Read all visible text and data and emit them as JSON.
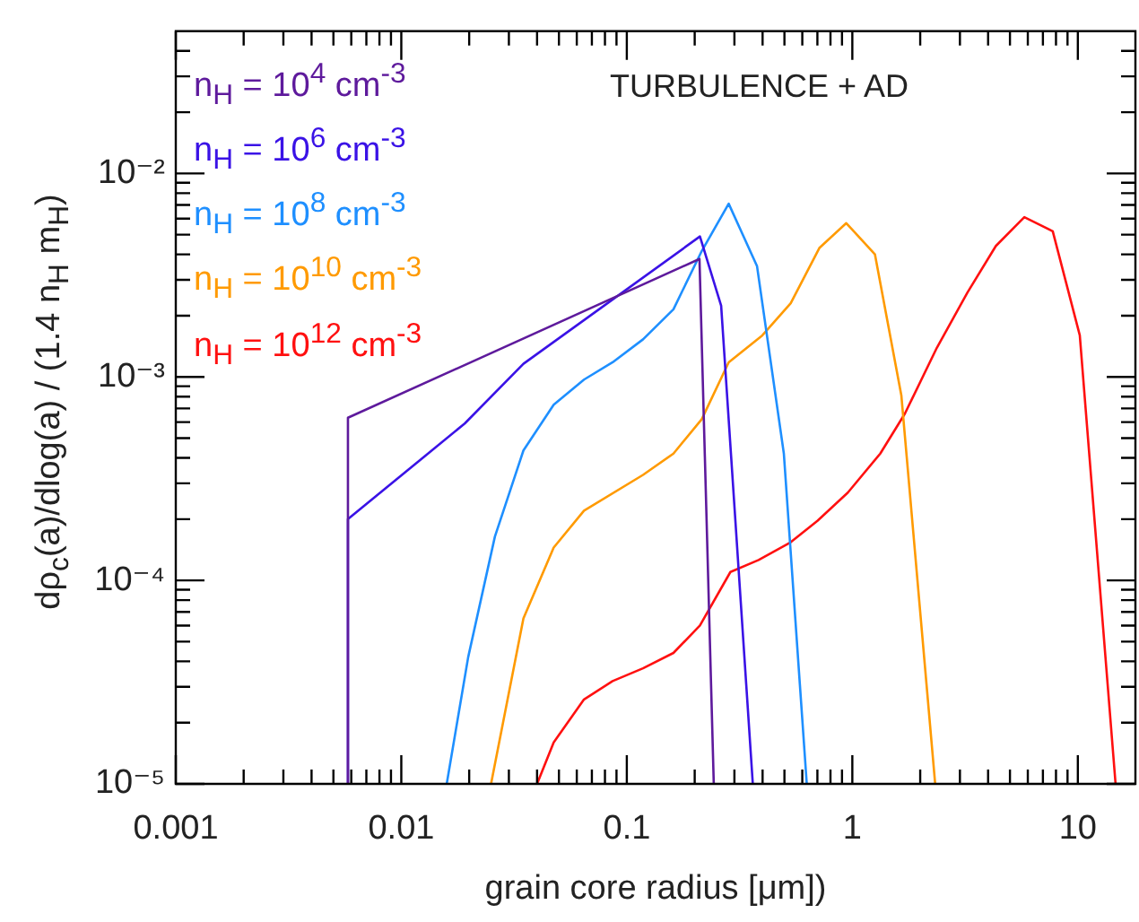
{
  "chart_data": {
    "type": "line",
    "xlabel": "grain core radius [μm])",
    "ylabel": "dρ$_{c}$(a)/dlog(a) / (1.4 n$_{H}$ m$_{H}$)",
    "annotations": [
      "TURBULENCE + AD"
    ],
    "log": "xy",
    "legend": "top left",
    "grid": false,
    "marker": "none",
    "line_style": "solid",
    "xlim": [
      0.001,
      18
    ],
    "ylim": [
      1e-05,
      0.05
    ],
    "xticks": [
      {
        "value": 0.001,
        "label": "0.001"
      },
      {
        "value": 0.002,
        "label": null
      },
      {
        "value": 0.003,
        "label": null
      },
      {
        "value": 0.004,
        "label": null
      },
      {
        "value": 0.005,
        "label": null
      },
      {
        "value": 0.006,
        "label": null
      },
      {
        "value": 0.007,
        "label": null
      },
      {
        "value": 0.008,
        "label": null
      },
      {
        "value": 0.009,
        "label": null
      },
      {
        "value": 0.01,
        "label": "0.01"
      },
      {
        "value": 0.02,
        "label": null
      },
      {
        "value": 0.03,
        "label": null
      },
      {
        "value": 0.04,
        "label": null
      },
      {
        "value": 0.05,
        "label": null
      },
      {
        "value": 0.06,
        "label": null
      },
      {
        "value": 0.07,
        "label": null
      },
      {
        "value": 0.08,
        "label": null
      },
      {
        "value": 0.09,
        "label": null
      },
      {
        "value": 0.1,
        "label": "0.1"
      },
      {
        "value": 0.2,
        "label": null
      },
      {
        "value": 0.3,
        "label": null
      },
      {
        "value": 0.4,
        "label": null
      },
      {
        "value": 0.5,
        "label": null
      },
      {
        "value": 0.6,
        "label": null
      },
      {
        "value": 0.7,
        "label": null
      },
      {
        "value": 0.8,
        "label": null
      },
      {
        "value": 0.9,
        "label": null
      },
      {
        "value": 1,
        "label": "1"
      },
      {
        "value": 2,
        "label": null
      },
      {
        "value": 3,
        "label": null
      },
      {
        "value": 4,
        "label": null
      },
      {
        "value": 5,
        "label": null
      },
      {
        "value": 6,
        "label": null
      },
      {
        "value": 7,
        "label": null
      },
      {
        "value": 8,
        "label": null
      },
      {
        "value": 9,
        "label": null
      },
      {
        "value": 10,
        "label": "10"
      }
    ],
    "yticks": [
      {
        "value": 1e-05,
        "label": "10⁻⁵"
      },
      {
        "value": 2e-05,
        "label": null
      },
      {
        "value": 3e-05,
        "label": null
      },
      {
        "value": 4e-05,
        "label": null
      },
      {
        "value": 5e-05,
        "label": null
      },
      {
        "value": 6e-05,
        "label": null
      },
      {
        "value": 7e-05,
        "label": null
      },
      {
        "value": 8e-05,
        "label": null
      },
      {
        "value": 9e-05,
        "label": null
      },
      {
        "value": 0.0001,
        "label": "10⁻⁴"
      },
      {
        "value": 0.0002,
        "label": null
      },
      {
        "value": 0.0003,
        "label": null
      },
      {
        "value": 0.0004,
        "label": null
      },
      {
        "value": 0.0005,
        "label": null
      },
      {
        "value": 0.0006,
        "label": null
      },
      {
        "value": 0.0007,
        "label": null
      },
      {
        "value": 0.0008,
        "label": null
      },
      {
        "value": 0.0009,
        "label": null
      },
      {
        "value": 0.001,
        "label": "10⁻³"
      },
      {
        "value": 0.002,
        "label": null
      },
      {
        "value": 0.003,
        "label": null
      },
      {
        "value": 0.004,
        "label": null
      },
      {
        "value": 0.005,
        "label": null
      },
      {
        "value": 0.006,
        "label": null
      },
      {
        "value": 0.007,
        "label": null
      },
      {
        "value": 0.008,
        "label": null
      },
      {
        "value": 0.009,
        "label": null
      },
      {
        "value": 0.01,
        "label": "10⁻²"
      },
      {
        "value": 0.02,
        "label": null
      },
      {
        "value": 0.03,
        "label": null
      },
      {
        "value": 0.04,
        "label": null
      }
    ],
    "series": [
      {
        "name": "n$_{H}$ = 10$^{4}$ cm$^{-3}$",
        "color": "#5e1a9c",
        "x": [
          0.0058,
          0.0058,
          0.21,
          0.243
        ],
        "values": [
          1e-05,
          0.00063,
          0.0038,
          1e-05
        ]
      },
      {
        "name": "n$_{H}$ = 10$^{6}$ cm$^{-3}$",
        "color": "#3a12e6",
        "x": [
          0.0058,
          0.0058,
          0.0191,
          0.0348,
          0.211,
          0.262,
          0.362
        ],
        "values": [
          1e-05,
          0.0002,
          0.00059,
          0.00116,
          0.0049,
          0.00224,
          1e-05
        ]
      },
      {
        "name": "n$_{H}$ = 10$^{8}$ cm$^{-3}$",
        "color": "#1e8fff",
        "x": [
          0.0159,
          0.0198,
          0.026,
          0.0348,
          0.0474,
          0.0646,
          0.0865,
          0.118,
          0.161,
          0.215,
          0.283,
          0.378,
          0.497,
          0.628
        ],
        "values": [
          1e-05,
          4.2e-05,
          0.000164,
          0.000435,
          0.00073,
          0.00097,
          0.00118,
          0.00153,
          0.00215,
          0.00416,
          0.0071,
          0.0035,
          0.00042,
          1e-05
        ]
      },
      {
        "name": "n$_{H}$ = 10$^{10}$ cm$^{-3}$",
        "color": "#ff9a00",
        "x": [
          0.025,
          0.0348,
          0.0474,
          0.0646,
          0.118,
          0.161,
          0.215,
          0.283,
          0.399,
          0.533,
          0.714,
          0.94,
          1.26,
          1.65,
          2.33
        ],
        "values": [
          1e-05,
          6.5e-05,
          0.000145,
          0.00022,
          0.00033,
          0.00042,
          0.00062,
          0.00118,
          0.0016,
          0.0023,
          0.0043,
          0.0057,
          0.004,
          0.00081,
          1e-05
        ]
      },
      {
        "name": "n$_{H}$ = 10$^{12}$ cm$^{-3}$",
        "color": "#ff1010",
        "x": [
          0.04,
          0.0474,
          0.0646,
          0.0865,
          0.118,
          0.161,
          0.211,
          0.288,
          0.384,
          0.533,
          0.7,
          0.955,
          1.33,
          1.71,
          2.37,
          3.24,
          4.33,
          5.79,
          7.74,
          10.2,
          14.7
        ],
        "values": [
          1e-05,
          1.6e-05,
          2.6e-05,
          3.2e-05,
          3.7e-05,
          4.4e-05,
          6e-05,
          0.00011,
          0.000126,
          0.000154,
          0.000196,
          0.00027,
          0.00042,
          0.00066,
          0.00139,
          0.0026,
          0.0044,
          0.0061,
          0.0052,
          0.0016,
          1e-05
        ]
      }
    ]
  }
}
